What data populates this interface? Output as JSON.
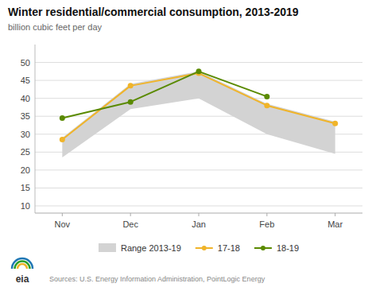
{
  "chart_data": {
    "type": "line",
    "title": "Winter residential/commercial consumption, 2013-2019",
    "subtitle": "billion cubic feet per day",
    "categories": [
      "Nov",
      "Dec",
      "Jan",
      "Feb",
      "Mar"
    ],
    "series": [
      {
        "name": "Range 2013-19",
        "type": "area",
        "color": "#d3d3d3",
        "low": [
          23.5,
          37.0,
          40.0,
          30.0,
          24.5
        ],
        "high": [
          29.0,
          44.0,
          47.5,
          38.5,
          33.5
        ]
      },
      {
        "name": "17-18",
        "type": "line",
        "color": "#f0b429",
        "marker": "circle",
        "values": [
          28.5,
          43.5,
          47.0,
          38.0,
          33.0
        ]
      },
      {
        "name": "18-19",
        "type": "line",
        "color": "#5a8a00",
        "marker": "circle",
        "values": [
          34.5,
          39.0,
          47.5,
          40.5,
          null
        ]
      }
    ],
    "ylim": [
      8,
      55
    ],
    "yticks": [
      10,
      15,
      20,
      25,
      30,
      35,
      40,
      45,
      50
    ],
    "grid": true,
    "legend": "bottom",
    "annotations": [
      "Sources: U.S. Energy Information Administration, PointLogic Energy",
      "eia"
    ]
  }
}
